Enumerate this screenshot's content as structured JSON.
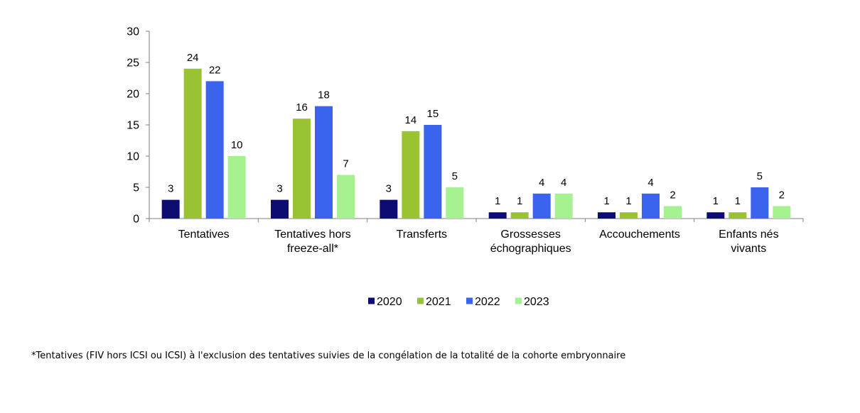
{
  "chart_data": {
    "type": "bar",
    "categories": [
      [
        "Tentatives"
      ],
      [
        "Tentatives hors",
        "freeze-all*"
      ],
      [
        "Transferts"
      ],
      [
        "Grossesses",
        "échographiques"
      ],
      [
        "Accouchements"
      ],
      [
        "Enfants nés",
        "vivants"
      ]
    ],
    "series": [
      {
        "name": "2020",
        "color": "#0c0c73",
        "values": [
          3,
          3,
          3,
          1,
          1,
          1
        ]
      },
      {
        "name": "2021",
        "color": "#9ac334",
        "values": [
          24,
          16,
          14,
          1,
          1,
          1
        ]
      },
      {
        "name": "2022",
        "color": "#3a64ee",
        "values": [
          22,
          18,
          15,
          4,
          4,
          5
        ]
      },
      {
        "name": "2023",
        "color": "#a6f291",
        "values": [
          10,
          7,
          5,
          4,
          2,
          2
        ]
      }
    ],
    "ylim": [
      0,
      30
    ],
    "yticks": [
      0,
      5,
      10,
      15,
      20,
      25,
      30
    ],
    "grid": false,
    "legend_position": "bottom-center"
  },
  "footnote": "*Tentatives (FIV hors ICSI ou ICSI) à l'exclusion des tentatives suivies de la congélation de la totalité de la cohorte embryonnaire"
}
